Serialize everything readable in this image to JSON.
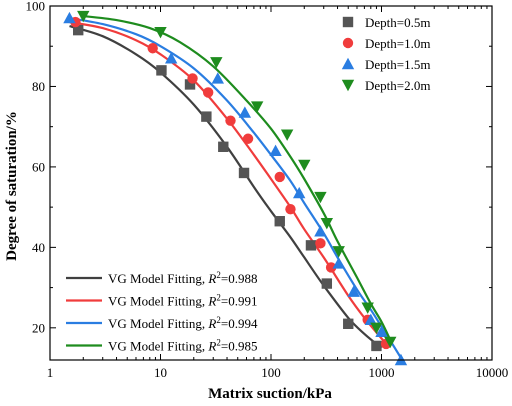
{
  "chart_data": {
    "type": "scatter",
    "xlabel": "Matrix suction/kPa",
    "ylabel": "Degree of saturation/%",
    "xscale": "log",
    "xlim": [
      1,
      10000
    ],
    "ylim": [
      12,
      100
    ],
    "xticks": [
      1,
      10,
      100,
      1000,
      10000
    ],
    "xtick_labels": [
      "1",
      "10",
      "100",
      "1000",
      "10000"
    ],
    "yticks": [
      20,
      40,
      60,
      80,
      100
    ],
    "ytick_labels": [
      "20",
      "40",
      "60",
      "80",
      "100"
    ],
    "grid": false,
    "series": [
      {
        "name": "Depth=0.5m",
        "marker": "square",
        "color": "#555555",
        "x": [
          1.8,
          10.2,
          18.5,
          26.0,
          37.0,
          57.0,
          120.0,
          230.0,
          320.0,
          500.0,
          900.0
        ],
        "y": [
          94.0,
          84.0,
          80.5,
          72.5,
          65.0,
          58.5,
          46.5,
          40.5,
          31.0,
          21.0,
          15.5
        ]
      },
      {
        "name": "Depth=1.0m",
        "marker": "circle",
        "color": "#f03c3c",
        "x": [
          1.7,
          8.5,
          19.5,
          27.0,
          43.0,
          62.0,
          120.0,
          150.0,
          280.0,
          350.0,
          750.0,
          1100.0
        ],
        "y": [
          96.0,
          89.5,
          82.0,
          78.5,
          71.5,
          67.0,
          57.5,
          49.5,
          41.0,
          35.0,
          22.0,
          16.0
        ]
      },
      {
        "name": "Depth=1.5m",
        "marker": "triangle-up",
        "color": "#2a7de1",
        "x": [
          1.5,
          12.5,
          33.0,
          58.0,
          110.0,
          180.0,
          280.0,
          410.0,
          560.0,
          800.0,
          1000.0,
          1500.0
        ],
        "y": [
          97.0,
          87.0,
          82.0,
          73.5,
          64.0,
          53.5,
          44.0,
          36.0,
          29.0,
          22.0,
          19.0,
          12.0
        ]
      },
      {
        "name": "Depth=2.0m",
        "marker": "triangle-down",
        "color": "#1e8c1e",
        "x": [
          2.0,
          10.0,
          32.0,
          75.0,
          140.0,
          200.0,
          280.0,
          320.0,
          410.0,
          750.0,
          900.0,
          1200.0
        ],
        "y": [
          97.5,
          93.5,
          86.0,
          75.0,
          68.0,
          60.5,
          52.5,
          46.0,
          39.0,
          25.0,
          20.0,
          16.5
        ]
      }
    ],
    "fits": [
      {
        "name": "VG Model Fitting, R2=0.988",
        "prefix": "VG Model Fitting, ",
        "r2_symbol": "R",
        "r2_power": "2",
        "r2_value": "=0.988",
        "color": "#404040",
        "x": [
          1.5,
          3,
          6,
          10,
          20,
          40,
          70,
          100,
          150,
          200,
          300,
          500,
          700,
          1000
        ],
        "y": [
          95.0,
          92.5,
          88.0,
          83.5,
          75.5,
          65.0,
          55.0,
          49.0,
          42.5,
          37.5,
          30.5,
          22.5,
          18.5,
          15.0
        ]
      },
      {
        "name": "VG Model Fitting, R2=0.991",
        "prefix": "VG Model Fitting, ",
        "r2_symbol": "R",
        "r2_power": "2",
        "r2_value": "=0.991",
        "color": "#f03c3c",
        "x": [
          1.5,
          3,
          6,
          10,
          20,
          40,
          70,
          100,
          150,
          200,
          300,
          500,
          700,
          1100
        ],
        "y": [
          96.0,
          94.5,
          91.5,
          88.0,
          81.5,
          72.0,
          63.0,
          57.0,
          50.0,
          44.5,
          37.5,
          28.0,
          22.5,
          16.0
        ]
      },
      {
        "name": "VG Model Fitting, R2=0.994",
        "prefix": "VG Model Fitting, ",
        "r2_symbol": "R",
        "r2_power": "2",
        "r2_value": "=0.994",
        "color": "#2a7de1",
        "x": [
          1.5,
          3,
          6,
          10,
          20,
          40,
          70,
          100,
          150,
          200,
          300,
          400,
          600,
          800,
          1100,
          1500
        ],
        "y": [
          97.0,
          95.5,
          93.0,
          90.0,
          84.5,
          76.5,
          68.5,
          63.0,
          56.5,
          51.0,
          43.5,
          37.5,
          29.5,
          24.5,
          18.5,
          12.5
        ]
      },
      {
        "name": "VG Model Fitting, R2=0.985",
        "prefix": "VG Model Fitting, ",
        "r2_symbol": "R",
        "r2_power": "2",
        "r2_value": "=0.985",
        "color": "#1e8c1e",
        "x": [
          2,
          4,
          8,
          15,
          30,
          60,
          100,
          150,
          200,
          300,
          400,
          600,
          800,
          1000,
          1200
        ],
        "y": [
          97.5,
          96.5,
          94.5,
          91.0,
          85.0,
          76.5,
          69.5,
          62.5,
          57.0,
          48.5,
          41.5,
          32.5,
          26.0,
          21.5,
          17.0
        ]
      }
    ],
    "legend_top_placement": "top-right",
    "legend_bottom_placement": "bottom-left"
  }
}
